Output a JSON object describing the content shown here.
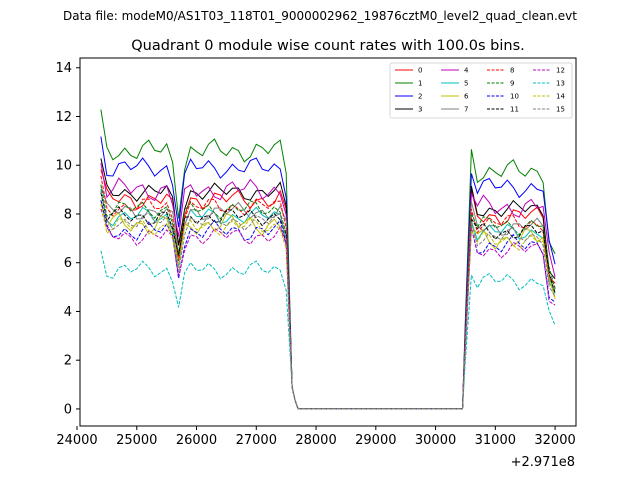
{
  "figure": {
    "suptitle": "Data file: modeM0/AS1T03_118T01_9000002962_19876cztM0_level2_quad_clean.evt"
  },
  "chart_data": {
    "type": "line",
    "title": "Quadrant 0 module wise count rates with 100.0s bins.",
    "xlabel": "",
    "ylabel": "",
    "x_offset_label": "+2.971e8",
    "xlim": [
      24050,
      32350
    ],
    "ylim": [
      -0.7,
      14.4
    ],
    "x_ticks": [
      24000,
      25000,
      26000,
      27000,
      28000,
      29000,
      30000,
      31000,
      32000
    ],
    "y_ticks": [
      0,
      2,
      4,
      6,
      8,
      10,
      12,
      14
    ],
    "legend_position": "top-right",
    "x_segments": {
      "first_start": 24400,
      "first_end": 27550,
      "second_start": 30500,
      "second_end": 32000,
      "bin": 100
    },
    "series": [
      {
        "name": "0",
        "color": "#ff0000",
        "dashed": false,
        "base": 8.6,
        "amp": 0.45,
        "phase": 0.3
      },
      {
        "name": "1",
        "color": "#008000",
        "dashed": false,
        "base": 10.6,
        "amp": 0.5,
        "phase": 1.1
      },
      {
        "name": "2",
        "color": "#0000ff",
        "dashed": false,
        "base": 9.9,
        "amp": 0.45,
        "phase": 2.0
      },
      {
        "name": "3",
        "color": "#000000",
        "dashed": false,
        "base": 8.9,
        "amp": 0.4,
        "phase": 0.7
      },
      {
        "name": "4",
        "color": "#bf00bf",
        "dashed": false,
        "base": 9.0,
        "amp": 0.5,
        "phase": 2.6
      },
      {
        "name": "5",
        "color": "#00bfbf",
        "dashed": false,
        "base": 7.9,
        "amp": 0.4,
        "phase": 1.7
      },
      {
        "name": "6",
        "color": "#bfbf00",
        "dashed": false,
        "base": 7.6,
        "amp": 0.5,
        "phase": 3.1
      },
      {
        "name": "7",
        "color": "#808080",
        "dashed": false,
        "base": 8.1,
        "amp": 0.4,
        "phase": 0.1
      },
      {
        "name": "8",
        "color": "#ff0000",
        "dashed": true,
        "base": 8.3,
        "amp": 0.4,
        "phase": 1.4
      },
      {
        "name": "9",
        "color": "#008000",
        "dashed": true,
        "base": 8.2,
        "amp": 0.4,
        "phase": 2.3
      },
      {
        "name": "10",
        "color": "#0000ff",
        "dashed": true,
        "base": 7.3,
        "amp": 0.45,
        "phase": 0.9
      },
      {
        "name": "11",
        "color": "#000000",
        "dashed": true,
        "base": 7.9,
        "amp": 0.4,
        "phase": 2.9
      },
      {
        "name": "12",
        "color": "#bf00bf",
        "dashed": true,
        "base": 7.1,
        "amp": 0.4,
        "phase": 0.5
      },
      {
        "name": "13",
        "color": "#00bfbf",
        "dashed": true,
        "base": 5.7,
        "amp": 0.4,
        "phase": 1.9
      },
      {
        "name": "14",
        "color": "#bfbf00",
        "dashed": true,
        "base": 7.5,
        "amp": 0.4,
        "phase": 2.4
      },
      {
        "name": "15",
        "color": "#808080",
        "dashed": true,
        "base": 7.7,
        "amp": 0.4,
        "phase": 1.2
      }
    ]
  }
}
